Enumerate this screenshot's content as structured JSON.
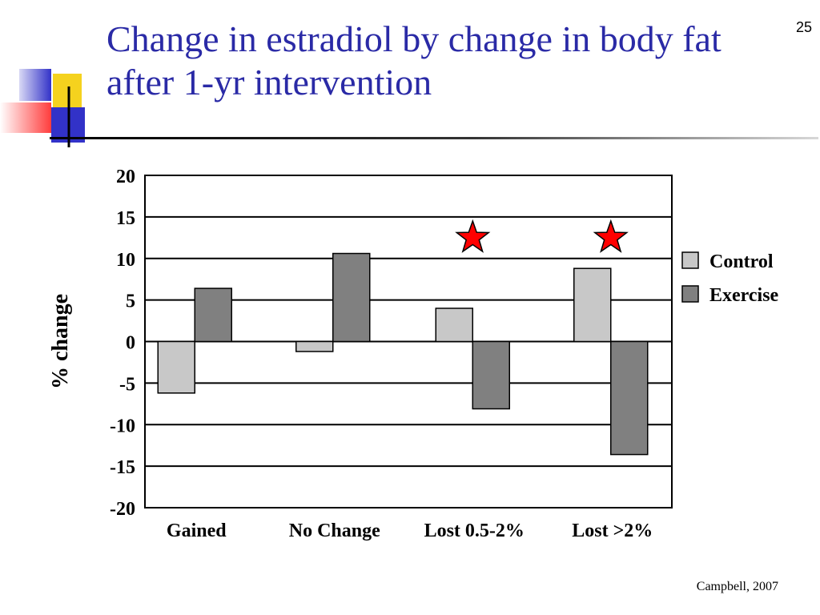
{
  "slide": {
    "number": "25",
    "title": "Change in estradiol by change in body fat after 1-yr intervention",
    "source": "Campbell, 2007"
  },
  "colors": {
    "title": "#2a2aa6",
    "control": "#c8c8c8",
    "exercise": "#808080",
    "significance_star": "#ff0000",
    "decor_blue": "#3232c8",
    "decor_yellow": "#f5d21e",
    "decor_red": "#ff3c3c"
  },
  "chart_data": {
    "type": "bar",
    "title": "",
    "xlabel": "",
    "ylabel": "% change",
    "ylim": [
      -20,
      20
    ],
    "yticks": [
      20,
      15,
      10,
      5,
      0,
      -5,
      -10,
      -15,
      -20
    ],
    "grid": true,
    "legend_position": "right",
    "categories": [
      "Gained",
      "No Change",
      "Lost 0.5-2%",
      "Lost >2%"
    ],
    "series": [
      {
        "name": "Control",
        "values": [
          -6.2,
          -1.2,
          4.0,
          8.8
        ]
      },
      {
        "name": "Exercise",
        "values": [
          6.4,
          10.6,
          -8.1,
          -13.6
        ]
      }
    ],
    "significance_markers": [
      {
        "category": "Lost 0.5-2%",
        "symbol": "star"
      },
      {
        "category": "Lost >2%",
        "symbol": "star"
      }
    ]
  }
}
